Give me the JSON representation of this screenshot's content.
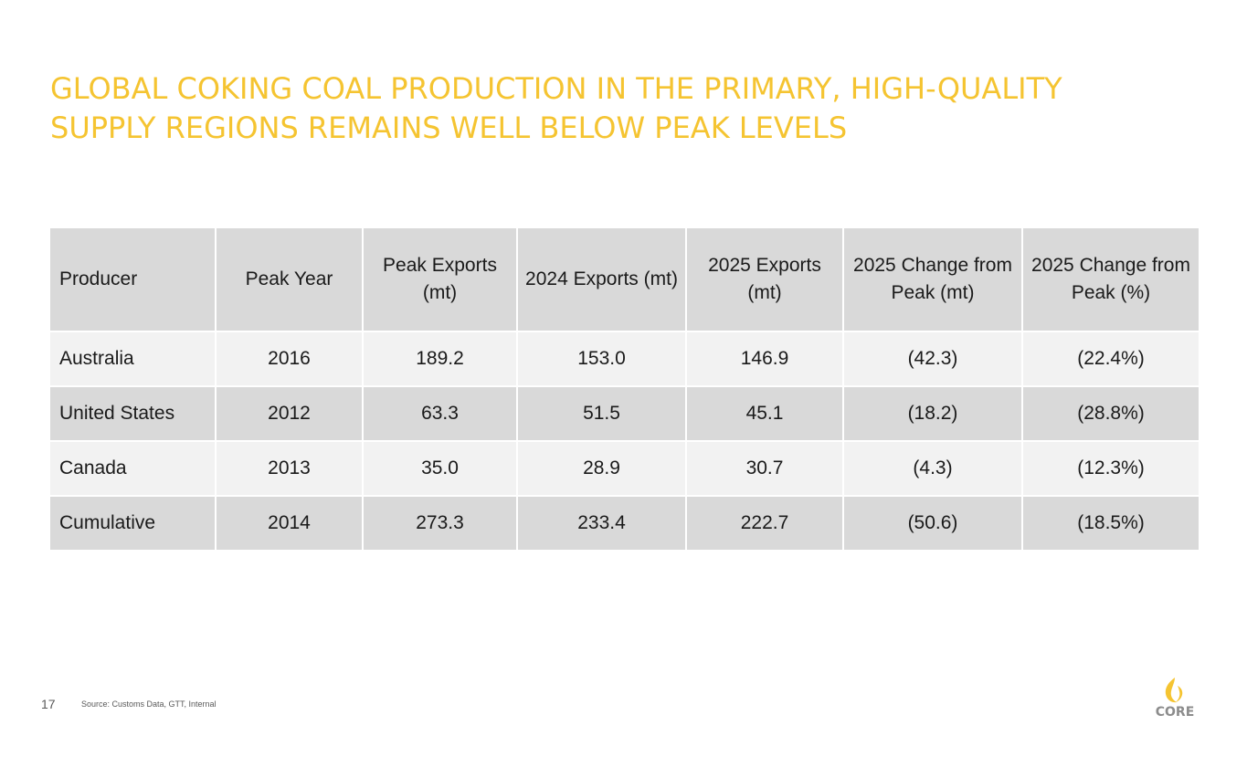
{
  "slide": {
    "title_line1": "GLOBAL COKING COAL PRODUCTION IN THE PRIMARY, HIGH-QUALITY",
    "title_line2": "SUPPLY REGIONS REMAINS WELL BELOW PEAK LEVELS",
    "page_number": "17",
    "source": "Source: Customs Data, GTT, Internal",
    "logo_text": "CORE",
    "accent_color": "#f5c431"
  },
  "table": {
    "headers": [
      "Producer",
      "Peak Year",
      "Peak Exports (mt)",
      "2024 Exports (mt)",
      "2025 Exports (mt)",
      "2025 Change from Peak (mt)",
      "2025 Change from Peak (%)"
    ],
    "rows": [
      [
        "Australia",
        "2016",
        "189.2",
        "153.0",
        "146.9",
        "(42.3)",
        "(22.4%)"
      ],
      [
        "United States",
        "2012",
        "63.3",
        "51.5",
        "45.1",
        "(18.2)",
        "(28.8%)"
      ],
      [
        "Canada",
        "2013",
        "35.0",
        "28.9",
        "30.7",
        "(4.3)",
        "(12.3%)"
      ],
      [
        "Cumulative",
        "2014",
        "273.3",
        "233.4",
        "222.7",
        "(50.6)",
        "(18.5%)"
      ]
    ]
  }
}
